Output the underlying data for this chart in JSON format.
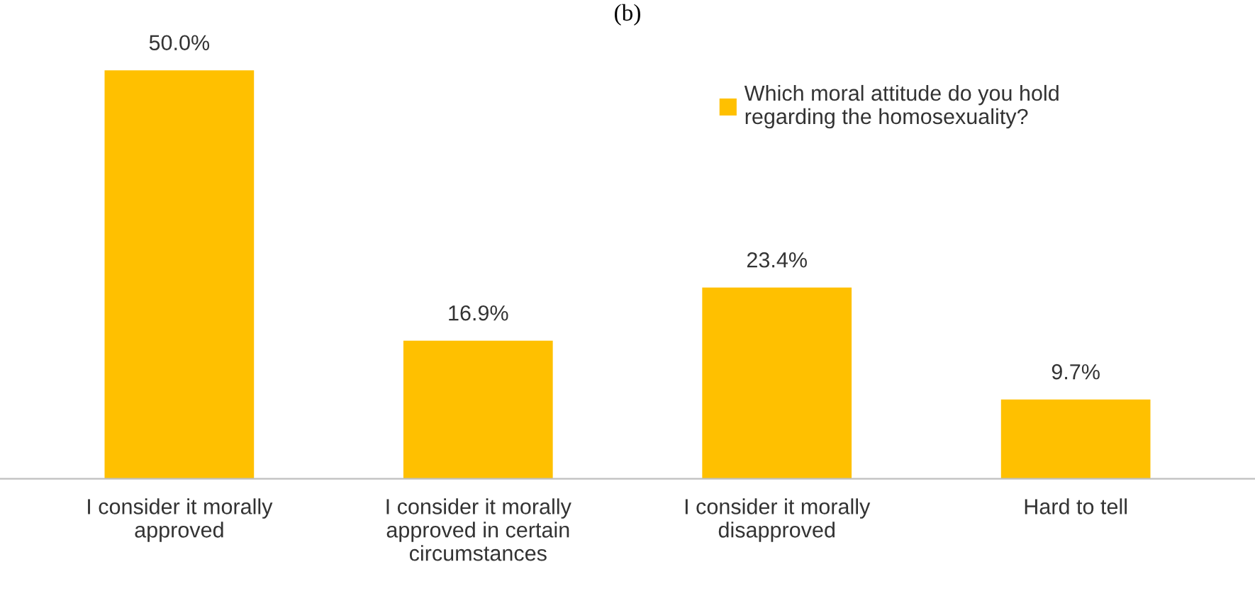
{
  "chart_data": {
    "type": "bar",
    "title": "(b)",
    "categories": [
      "I consider it morally approved",
      "I consider it morally approved in certain circumstances",
      "I consider it morally disapproved",
      "Hard to tell"
    ],
    "series": [
      {
        "name": "Which moral attitude do you hold regarding the homosexuality?",
        "color": "#ffc000",
        "values": [
          50.0,
          16.9,
          23.4,
          9.7
        ],
        "value_labels": [
          "50.0%",
          "16.9%",
          "23.4%",
          "9.7%"
        ]
      }
    ],
    "tick_labels": "x",
    "grid": false,
    "legend": "top right"
  }
}
